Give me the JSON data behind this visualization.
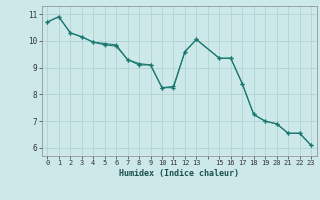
{
  "xlabel": "Humidex (Indice chaleur)",
  "ylabel": "",
  "background_color": "#cce8e8",
  "grid_color": "#aacfcf",
  "line_color": "#1a7870",
  "marker_color": "#1a7870",
  "line1_x": [
    0,
    1,
    2,
    3,
    4,
    5,
    6,
    7,
    8,
    9,
    10,
    11,
    12,
    13,
    15,
    16,
    17,
    18,
    19,
    20,
    21,
    22,
    23
  ],
  "line1_y": [
    10.7,
    10.9,
    10.3,
    10.15,
    9.95,
    9.9,
    9.85,
    9.3,
    9.1,
    9.1,
    8.25,
    8.25,
    9.6,
    10.05,
    9.35,
    9.35,
    8.4,
    7.25,
    7.0,
    6.9,
    6.55,
    6.55,
    6.1
  ],
  "line2_x": [
    0,
    1,
    2,
    3,
    4,
    5,
    6,
    7,
    8,
    9,
    10,
    11,
    12,
    13,
    15,
    16,
    17,
    18,
    19,
    20,
    21,
    22,
    23
  ],
  "line2_y": [
    10.7,
    10.9,
    10.3,
    10.15,
    9.95,
    9.85,
    9.8,
    9.3,
    9.15,
    9.1,
    8.25,
    8.3,
    9.6,
    10.05,
    9.35,
    9.35,
    8.4,
    7.25,
    7.0,
    6.9,
    6.55,
    6.55,
    6.1
  ],
  "xlim": [
    -0.5,
    23.5
  ],
  "ylim": [
    5.7,
    11.3
  ],
  "yticks": [
    6,
    7,
    8,
    9,
    10,
    11
  ],
  "xticks": [
    0,
    1,
    2,
    3,
    4,
    5,
    6,
    7,
    8,
    9,
    10,
    11,
    12,
    13,
    15,
    16,
    17,
    18,
    19,
    20,
    21,
    22,
    23
  ]
}
